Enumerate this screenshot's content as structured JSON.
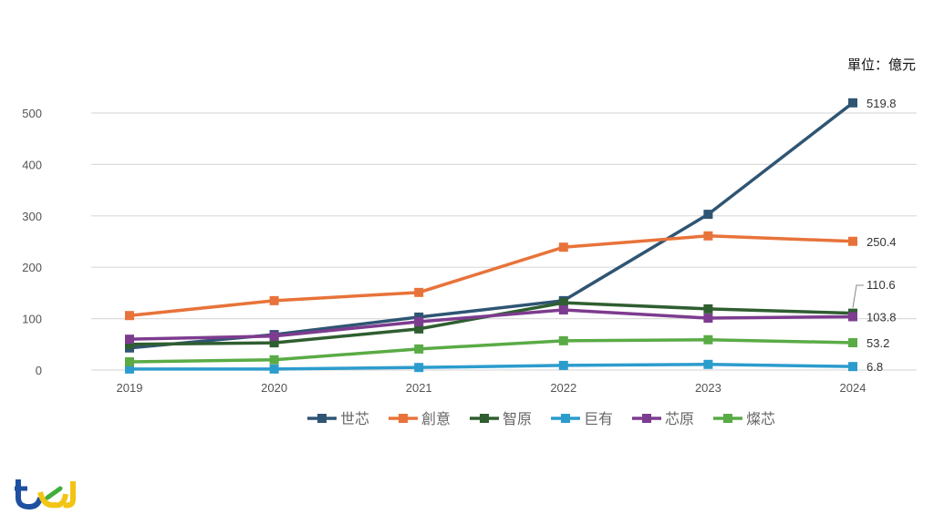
{
  "unit_label": "單位：億元",
  "logo_text": "tej",
  "chart_data": {
    "type": "line",
    "title": "",
    "xlabel": "",
    "ylabel": "",
    "categories": [
      "2019",
      "2020",
      "2021",
      "2022",
      "2023",
      "2024"
    ],
    "yticks": [
      0,
      100,
      200,
      300,
      400,
      500
    ],
    "ylim": [
      0,
      500
    ],
    "grid": true,
    "legend": "bottom",
    "series": [
      {
        "name": "世芯",
        "color": "#2f5573",
        "values": [
          43,
          69,
          103,
          135,
          303,
          519.8
        ],
        "end_label": "519.8"
      },
      {
        "name": "創意",
        "color": "#e8733a",
        "values": [
          106,
          135,
          151,
          239,
          261,
          250.4
        ],
        "end_label": "250.4"
      },
      {
        "name": "智原",
        "color": "#2f5e30",
        "values": [
          50,
          53,
          80,
          131,
          119,
          110.6
        ],
        "end_label": "110.6"
      },
      {
        "name": "巨有",
        "color": "#2c9ccd",
        "values": [
          2,
          2,
          5,
          9,
          11,
          6.8
        ],
        "end_label": "6.8"
      },
      {
        "name": "芯原",
        "color": "#7d3c8f",
        "values": [
          60,
          66,
          94,
          117,
          101,
          103.8
        ],
        "end_label": "103.8"
      },
      {
        "name": "燦芯",
        "color": "#5aab45",
        "values": [
          16,
          20,
          41,
          57,
          59,
          53.2
        ],
        "end_label": "53.2"
      }
    ]
  }
}
